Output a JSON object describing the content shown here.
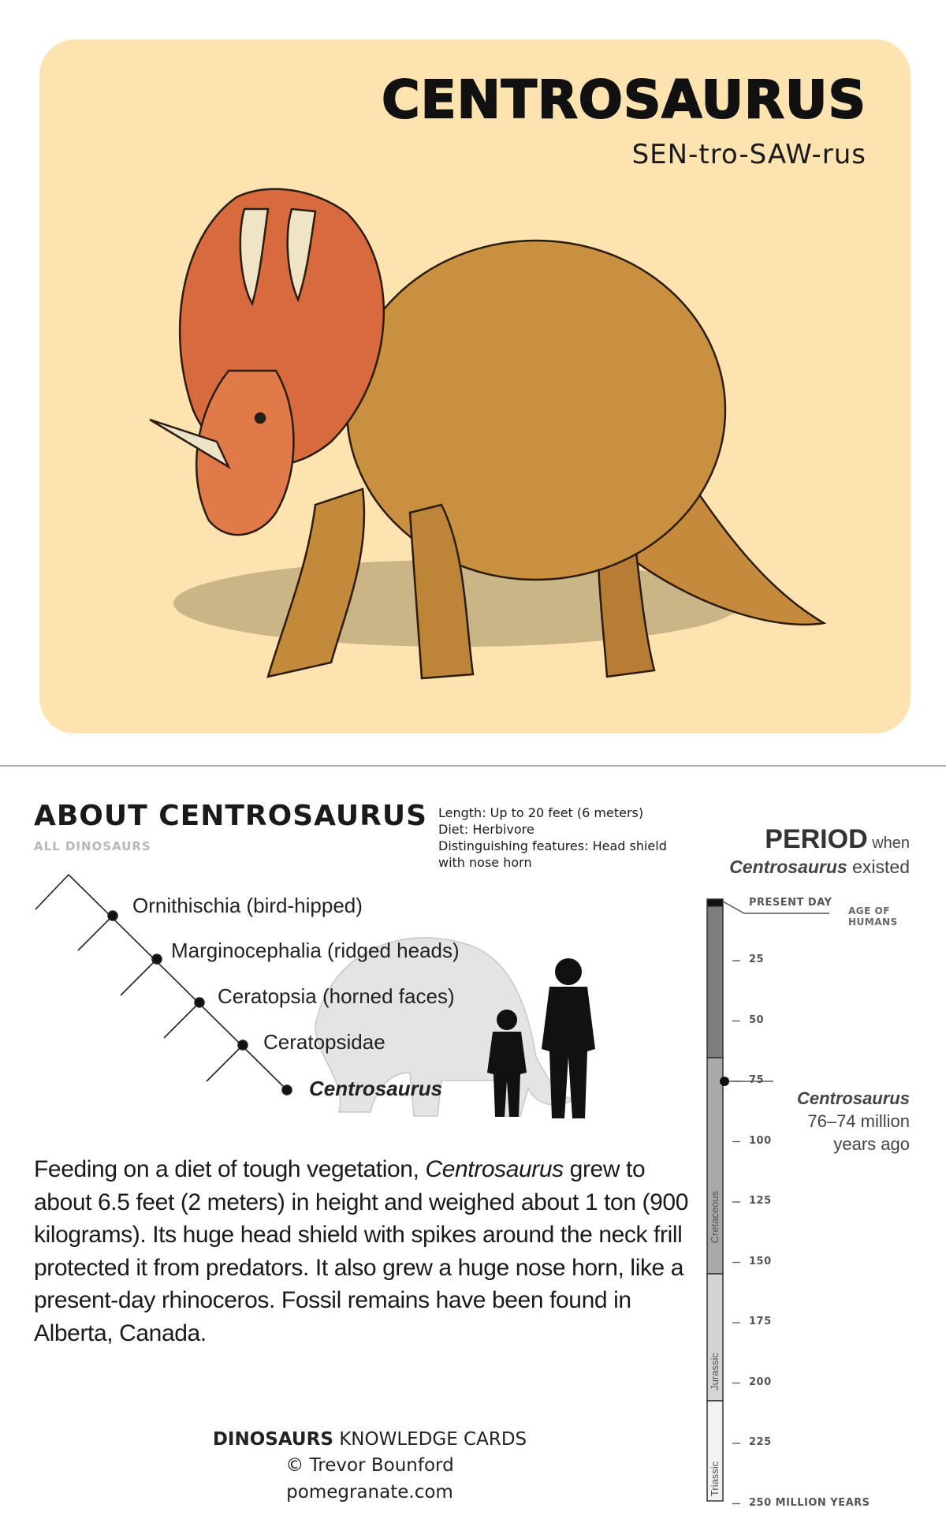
{
  "card": {
    "title": "CENTROSAURUS",
    "pronunciation": "SEN-tro-SAW-rus"
  },
  "about": {
    "heading": "ABOUT CENTROSAURUS",
    "subheading": "ALL DINOSAURS",
    "facts": [
      "Length: Up to 20 feet (6 meters)",
      "Diet: Herbivore",
      "Distinguishing features: Head shield",
      "with nose horn"
    ]
  },
  "cladogram": {
    "nodes": [
      "Ornithischia (bird-hipped)",
      "Marginocephalia (ridged heads)",
      "Ceratopsia (horned faces)",
      "Ceratopsidae",
      "Centrosaurus"
    ]
  },
  "description": [
    "Feeding on a diet of tough vegetation, ",
    "Centrosaurus",
    " grew to about 6.5 feet (2 meters) in height and weighed about 1 ton (900 kilograms). Its huge head shield with spikes around the neck frill protected it from predators. It also grew a huge nose horn, like a present-day rhinoceros. Fossil remains have been found in Alberta, Canada."
  ],
  "period": {
    "title": "PERIOD",
    "title_suffix": "when",
    "name": "Centrosaurus",
    "name_suffix": "existed",
    "timeline_ticks": [
      "PRESENT DAY",
      "25",
      "50",
      "75",
      "100",
      "125",
      "150",
      "175",
      "200",
      "225",
      "250 MILLION YEARS"
    ],
    "age_of_humans": [
      "AGE OF",
      "HUMANS"
    ],
    "eras": [
      "Cretaceous",
      "Jurassic",
      "Triassic"
    ],
    "annotation": [
      "Centrosaurus",
      "76–74 million",
      "years ago"
    ]
  },
  "footer": {
    "brand": "DINOSAURS",
    "series": "KNOWLEDGE CARDS",
    "copyright": "© Trevor Bounford",
    "website": "pomegranate.com"
  }
}
